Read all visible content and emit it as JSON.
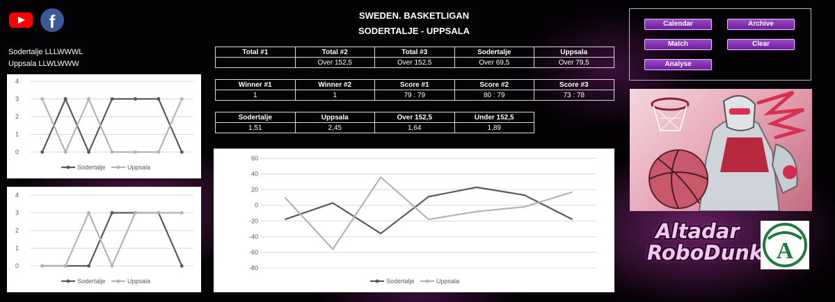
{
  "header": {
    "title_line1": "SWEDEN. BASKETLIGAN",
    "title_line2": "SODERTALJE - UPPSALA"
  },
  "form": {
    "home": "Sodertalje LLLWWWL",
    "away": "Uppsala LLWLWWW"
  },
  "totals_table": {
    "headers": [
      "Total #1",
      "Total #2",
      "Total #3",
      "Sodertalje",
      "Uppsala"
    ],
    "values": [
      "",
      "Over 152,5",
      "Over 152,5",
      "Over 69,5",
      "Over 79,5"
    ]
  },
  "results_table": {
    "headers": [
      "Winner #1",
      "Winner #2",
      "Score #1",
      "Score #2",
      "Score #3"
    ],
    "values": [
      "1",
      "1",
      "79 : 79",
      "80 : 79",
      "73 : 78"
    ]
  },
  "odds_table": {
    "headers": [
      "Sodertalje",
      "Uppsala",
      "Over 152,5",
      "Under 152,5"
    ],
    "values": [
      "1,51",
      "2,45",
      "1,64",
      "1,89"
    ]
  },
  "buttons": {
    "calendar": "Calendar",
    "archive": "Archive",
    "match": "Match",
    "clear": "Clear",
    "analyse": "Analyse"
  },
  "brand": {
    "line1": "Altadar",
    "line2": "RoboDunk",
    "logo_letter": "A"
  },
  "icons": [
    "youtube-icon",
    "facebook-icon"
  ],
  "colors": {
    "series_home": "#595959",
    "series_away": "#b3b3b3",
    "button": "#8a35b8"
  },
  "chart_data": [
    {
      "type": "line",
      "ylim": [
        0,
        4
      ],
      "yticks": [
        "0",
        "1",
        "2",
        "3",
        "4"
      ],
      "series": [
        {
          "name": "Sodertalje",
          "values": [
            0,
            3,
            0,
            3,
            3,
            3,
            0
          ]
        },
        {
          "name": "Uppsala",
          "values": [
            3,
            0,
            3,
            0,
            0,
            0,
            3
          ]
        }
      ],
      "grid": true,
      "legend": "bottom"
    },
    {
      "type": "line",
      "ylim": [
        0,
        4
      ],
      "yticks": [
        "0",
        "1",
        "2",
        "3",
        "4"
      ],
      "series": [
        {
          "name": "Sodertalje",
          "values": [
            0,
            0,
            0,
            3,
            3,
            3,
            0
          ]
        },
        {
          "name": "Uppsala",
          "values": [
            0,
            0,
            3,
            0,
            3,
            3,
            3
          ]
        }
      ],
      "grid": true,
      "legend": "bottom"
    },
    {
      "type": "line",
      "ylim": [
        -80,
        60
      ],
      "yticks": [
        "60",
        "40",
        "20",
        "0",
        "-20",
        "-40",
        "-60",
        "-80"
      ],
      "series": [
        {
          "name": "Sodertalje",
          "values": [
            -18,
            3,
            -36,
            11,
            23,
            13,
            -18
          ]
        },
        {
          "name": "Uppsala",
          "values": [
            10,
            -56,
            36,
            -18,
            -8,
            -2,
            17
          ]
        }
      ],
      "grid": true,
      "legend": "bottom"
    }
  ]
}
